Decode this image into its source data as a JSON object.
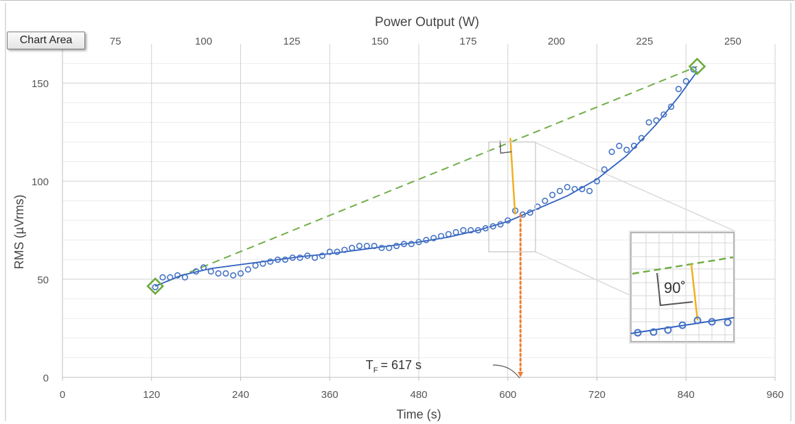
{
  "chart_data": {
    "type": "scatter",
    "xlabel": "Time (s)",
    "ylabel": "RMS (µVrms)",
    "x2label": "Power Output (W)",
    "xlim": [
      0,
      960
    ],
    "ylim": [
      0,
      170
    ],
    "x_ticks": [
      0,
      120,
      240,
      360,
      480,
      600,
      720,
      840,
      960
    ],
    "y_ticks": [
      0,
      50,
      100,
      150
    ],
    "x2_ticks": [
      75,
      100,
      125,
      150,
      175,
      200,
      225,
      250
    ],
    "x2_range": [
      60,
      262
    ],
    "grid": true,
    "series": [
      {
        "marker": "circle-open",
        "color": "#4472c4",
        "x": [
          125,
          135,
          145,
          155,
          165,
          180,
          190,
          200,
          210,
          220,
          230,
          240,
          250,
          260,
          270,
          280,
          290,
          300,
          310,
          320,
          330,
          340,
          350,
          360,
          370,
          380,
          390,
          400,
          410,
          420,
          430,
          440,
          450,
          460,
          470,
          480,
          490,
          500,
          510,
          520,
          530,
          540,
          550,
          560,
          570,
          580,
          590,
          600,
          610,
          620,
          630,
          640,
          650,
          660,
          670,
          680,
          690,
          700,
          710,
          720,
          730,
          740,
          750,
          760,
          770,
          780,
          790,
          800,
          810,
          820,
          830,
          840,
          850
        ],
        "y": [
          46,
          51,
          51,
          52,
          51,
          54,
          56,
          54,
          53,
          53,
          52,
          53,
          55,
          57,
          58,
          59,
          60,
          60,
          61,
          61,
          62,
          61,
          62,
          64,
          64,
          65,
          66,
          67,
          67,
          67,
          66,
          66,
          67,
          68,
          68,
          69,
          70,
          71,
          72,
          73,
          74,
          75,
          75,
          75,
          76,
          77,
          78,
          80,
          85,
          83,
          84,
          87,
          90,
          93,
          95,
          97,
          96,
          96,
          95,
          100,
          106,
          115,
          118,
          116,
          118,
          122,
          130,
          131,
          134,
          138,
          147,
          151,
          157
        ]
      },
      {
        "type": "line",
        "style": "solid",
        "color": "#2e5fbf",
        "x": [
          125,
          160,
          200,
          240,
          280,
          320,
          360,
          400,
          440,
          480,
          520,
          560,
          600,
          640,
          680,
          720,
          760,
          800,
          830,
          855
        ],
        "y": [
          46.5,
          52,
          55.5,
          57.5,
          59.5,
          61.5,
          63,
          65,
          67,
          69,
          71.5,
          75,
          79.5,
          86,
          92.5,
          101,
          113,
          129,
          143,
          156
        ]
      },
      {
        "type": "line",
        "style": "dashed",
        "color": "#70ad47",
        "x": [
          125,
          855
        ],
        "y": [
          46.5,
          158.5
        ]
      }
    ],
    "endpoint_markers": [
      {
        "x": 125,
        "y": 46.5,
        "marker": "diamond-open",
        "color": "#6aaa3a"
      },
      {
        "x": 855,
        "y": 158.5,
        "marker": "diamond-open",
        "color": "#6aaa3a"
      }
    ],
    "annotations": [
      {
        "type": "perpendicular",
        "x": 607,
        "y_top": 122,
        "y_bottom": 83,
        "color": "#f0b020"
      },
      {
        "type": "vline-dotted",
        "x": 617,
        "y_from": 83,
        "y_to": 0,
        "color": "#ed7d31"
      },
      {
        "type": "label",
        "text": "T_F = 617 s",
        "main": "T",
        "sub": "F",
        "rest": "= 617 s",
        "x": 617,
        "y": 0
      },
      {
        "type": "zoom-inset",
        "label": "90˚"
      }
    ]
  },
  "ui": {
    "chart_area_tag": "Chart Area"
  }
}
